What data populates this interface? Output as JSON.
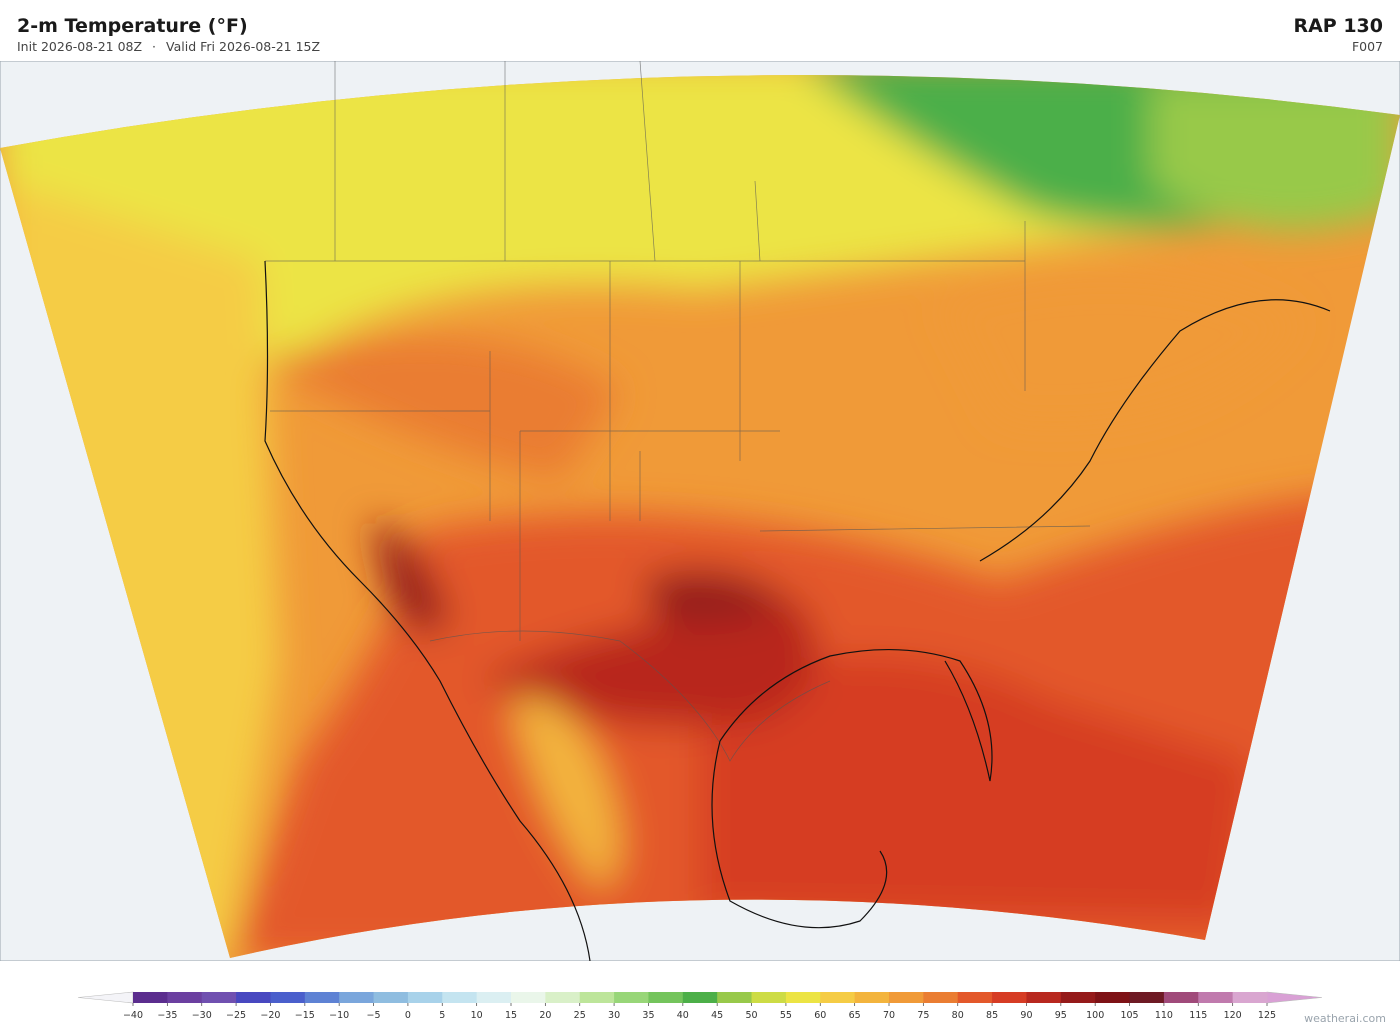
{
  "header": {
    "title": "2-m Temperature  (°F)",
    "init": "Init 2026-08-21 08Z",
    "separator": "·",
    "valid": "Valid Fri 2026-08-21 15Z",
    "model": "RAP  130",
    "forecast_hour": "F007"
  },
  "colorbar": {
    "ticks": [
      {
        "value": -40,
        "label": "−40"
      },
      {
        "value": -35,
        "label": "−35"
      },
      {
        "value": -30,
        "label": "−30"
      },
      {
        "value": -25,
        "label": "−25"
      },
      {
        "value": -20,
        "label": "−20"
      },
      {
        "value": -15,
        "label": "−15"
      },
      {
        "value": -10,
        "label": "−10"
      },
      {
        "value": -5,
        "label": "−5"
      },
      0,
      5,
      10,
      15,
      20,
      25,
      30,
      35,
      40,
      45,
      50,
      55,
      60,
      65,
      70,
      75,
      80,
      85,
      90,
      95,
      100,
      105,
      110,
      115,
      120,
      125
    ],
    "colors": [
      "#5b2d8e",
      "#6b3fa0",
      "#7050b0",
      "#4848c0",
      "#4a5fcc",
      "#5e82d4",
      "#7aa6dc",
      "#8fbde0",
      "#a8d2ea",
      "#c4e4f0",
      "#dbeff2",
      "#eaf6ea",
      "#d9f0c8",
      "#bde59a",
      "#98d678",
      "#74c45c",
      "#4caf48",
      "#98c94a",
      "#cddc45",
      "#ece444",
      "#f5cc45",
      "#f3b43d",
      "#f09a38",
      "#ea7d32",
      "#e3582a",
      "#d63c24",
      "#b8281f",
      "#951a1a",
      "#7e1216",
      "#6e1a24",
      "#a04a7a",
      "#c07aad",
      "#d9a6d0"
    ],
    "under_color": "#f4f4f8",
    "over_color": "#d9a0d5"
  },
  "watermark": "weatherai.com"
}
